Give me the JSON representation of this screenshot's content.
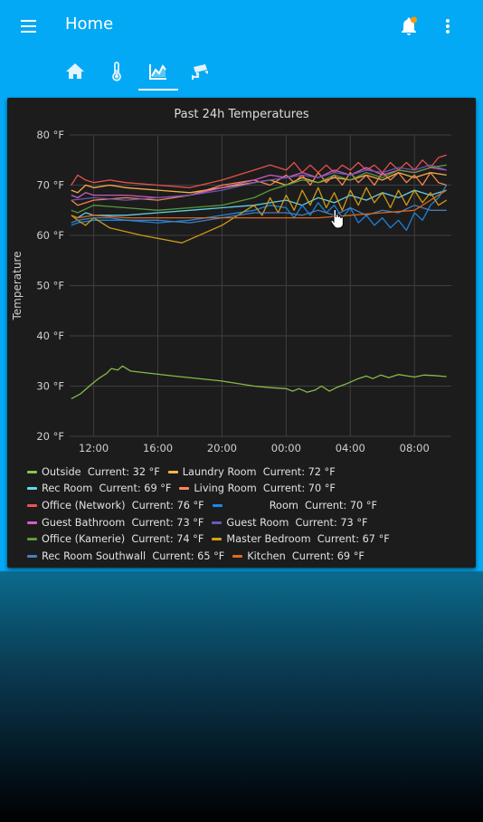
{
  "header": {
    "title": "Home",
    "menu_icon": "menu-icon",
    "notification_icon": "bell-icon",
    "more_icon": "dots-vertical-icon"
  },
  "tabs": [
    {
      "icon": "home-icon",
      "selected": false
    },
    {
      "icon": "thermometer-icon",
      "selected": false
    },
    {
      "icon": "chart-areaspline-icon",
      "selected": true
    },
    {
      "icon": "cctv-icon",
      "selected": false
    }
  ],
  "colors": {
    "accent": "#03a9f4",
    "card": "#1c1c1c",
    "notification_dot": "#ff9800"
  },
  "card": {
    "title": "Past 24h Temperatures"
  },
  "legend": {
    "current_label": "Current:"
  },
  "chart_data": {
    "type": "line",
    "title": "Past 24h Temperatures",
    "ylabel": "Temperature",
    "xlabel": "",
    "ylim": [
      20,
      80
    ],
    "yticks": [
      20,
      30,
      40,
      50,
      60,
      70,
      80
    ],
    "ytick_labels": [
      "20 °F",
      "30 °F",
      "40 °F",
      "50 °F",
      "60 °F",
      "70 °F",
      "80 °F"
    ],
    "xlim": [
      10.5,
      34.3
    ],
    "xticks": [
      12,
      16,
      20,
      24,
      28,
      32
    ],
    "xtick_labels": [
      "12:00",
      "16:00",
      "20:00",
      "00:00",
      "04:00",
      "08:00"
    ],
    "grid": true,
    "legend_position": "bottom",
    "series": [
      {
        "name": "Outside",
        "current": "32 °F",
        "color": "#8bc34a",
        "x": [
          10.6,
          10.8,
          11.2,
          11.8,
          12.3,
          12.8,
          13.1,
          13.5,
          13.8,
          14.3,
          17,
          20,
          22,
          23,
          24,
          24.4,
          24.8,
          25.3,
          25.8,
          26.2,
          26.7,
          27.2,
          27.8,
          28.5,
          29,
          29.4,
          29.9,
          30.4,
          31,
          31.6,
          32,
          32.6,
          33.2,
          34
        ],
        "y": [
          27.5,
          27.8,
          28.5,
          30.2,
          31.5,
          32.5,
          33.5,
          33.2,
          34,
          33,
          32,
          31,
          30,
          29.7,
          29.5,
          29,
          29.5,
          28.8,
          29.2,
          30,
          29,
          29.8,
          30.5,
          31.5,
          32,
          31.5,
          32.2,
          31.7,
          32.3,
          32,
          31.8,
          32.2,
          32.1,
          31.9
        ]
      },
      {
        "name": "Laundry Room",
        "current": "72 °F",
        "color": "#ffb74d",
        "x": [
          10.6,
          11,
          11.5,
          12,
          13,
          14,
          16,
          18,
          20,
          22,
          23,
          24,
          25,
          26,
          27,
          28,
          29,
          30,
          31,
          32,
          33,
          34
        ],
        "y": [
          69,
          68.5,
          70,
          69.5,
          70,
          69.5,
          69,
          68.5,
          69.5,
          70.5,
          71,
          70,
          71.5,
          70.5,
          71.5,
          71,
          72,
          71,
          72.5,
          71.5,
          72.5,
          72
        ]
      },
      {
        "name": "Rec Room",
        "current": "69 °F",
        "color": "#64d8f0",
        "x": [
          10.6,
          11,
          11.5,
          12,
          14,
          16,
          18,
          20,
          22,
          23,
          24,
          25,
          26,
          27,
          28,
          29,
          30,
          31,
          32,
          33,
          34
        ],
        "y": [
          64,
          63.5,
          64.5,
          64,
          64,
          64.5,
          65,
          65.5,
          66,
          66.5,
          67,
          66,
          67.5,
          66.5,
          68,
          67,
          68.5,
          67.5,
          69,
          68,
          69
        ]
      },
      {
        "name": "Living Room",
        "current": "70 °F",
        "color": "#ff8a50",
        "x": [
          10.6,
          11,
          12,
          14,
          16,
          18,
          20,
          22,
          23,
          24,
          24.5,
          25,
          25.5,
          26,
          26.5,
          27,
          27.5,
          28,
          28.5,
          29,
          29.5,
          30,
          30.5,
          31,
          31.5,
          32,
          32.5,
          33,
          33.5,
          34
        ],
        "y": [
          67,
          66,
          67,
          67.5,
          67,
          68,
          70,
          71,
          70,
          72,
          70.5,
          72,
          70,
          72.5,
          70.5,
          72,
          70,
          72.5,
          70.5,
          72,
          70,
          72.5,
          71,
          72.5,
          70.5,
          72,
          70,
          72.5,
          70.5,
          70
        ]
      },
      {
        "name": "Office (Network)",
        "current": "76 °F",
        "color": "#ef5350",
        "x": [
          10.6,
          11,
          11.5,
          12,
          13,
          14,
          16,
          18,
          20,
          22,
          23,
          24,
          24.5,
          25,
          25.5,
          26,
          26.5,
          27,
          27.5,
          28,
          28.5,
          29,
          29.5,
          30,
          30.5,
          31,
          31.5,
          32,
          32.5,
          33,
          33.5,
          34
        ],
        "y": [
          70,
          72,
          71,
          70.5,
          71,
          70.5,
          70,
          69.5,
          71,
          73,
          74,
          73,
          74.5,
          72.5,
          74,
          72.5,
          74,
          72.5,
          74,
          73,
          74.5,
          73,
          74,
          72.5,
          74.5,
          73,
          74.5,
          73,
          75,
          73.5,
          75.5,
          76
        ]
      },
      {
        "name": "Room",
        "current": "70 °F",
        "color": "#1e88e5",
        "x": [
          10.6,
          11,
          12,
          14,
          16,
          18,
          20,
          22,
          23,
          24,
          24.5,
          25,
          25.5,
          26,
          26.5,
          27,
          27.5,
          28,
          28.5,
          29,
          29.5,
          30,
          30.5,
          31,
          31.5,
          32,
          32.5,
          33,
          33.5,
          34
        ],
        "y": [
          62,
          62.5,
          63,
          63,
          62.5,
          63,
          64,
          65,
          66,
          65.5,
          63.5,
          66,
          64,
          66.5,
          64.5,
          66,
          63.5,
          65.5,
          62.5,
          64,
          62,
          63.5,
          61.5,
          63,
          61,
          64.5,
          63,
          66,
          67.5,
          70
        ]
      },
      {
        "name": "Guest Bathroom",
        "current": "73 °F",
        "color": "#d45fc4",
        "x": [
          10.6,
          11,
          11.5,
          12,
          14,
          16,
          18,
          20,
          22,
          23,
          24,
          25,
          26,
          27,
          28,
          29,
          30,
          31,
          32,
          33,
          34
        ],
        "y": [
          68,
          67.5,
          68.5,
          68,
          68,
          67.5,
          68,
          69.5,
          71,
          72,
          71.5,
          72.5,
          71.5,
          73,
          72,
          73.5,
          72,
          73,
          72.5,
          73.5,
          73
        ]
      },
      {
        "name": "Guest Room",
        "current": "73 °F",
        "color": "#6f58b8",
        "x": [
          10.6,
          12,
          14,
          16,
          18,
          20,
          22,
          24,
          25,
          26,
          27,
          28,
          29,
          30,
          31,
          32,
          33,
          34
        ],
        "y": [
          67,
          67.5,
          67,
          67.5,
          68,
          69,
          70.5,
          71.5,
          72,
          71.5,
          72.5,
          72,
          73,
          72.5,
          73.5,
          73,
          74,
          73
        ]
      },
      {
        "name": "Office (Kamerie)",
        "current": "74 °F",
        "color": "#5a9e3c",
        "x": [
          10.6,
          11,
          12,
          14,
          16,
          18,
          20,
          22,
          23,
          24,
          25,
          26,
          27,
          28,
          29,
          30,
          31,
          32,
          33,
          34
        ],
        "y": [
          65,
          64.5,
          66,
          65.5,
          65,
          65.5,
          66,
          67.5,
          69,
          70,
          71,
          70.5,
          72,
          71,
          72.5,
          71.5,
          73,
          72.5,
          73.5,
          74
        ]
      },
      {
        "name": "Master Bedroom",
        "current": "67 °F",
        "color": "#d4a017",
        "x": [
          10.6,
          11,
          11.5,
          12,
          13,
          15,
          17.5,
          20,
          22,
          22.5,
          23,
          23.5,
          24,
          24.5,
          25,
          25.5,
          26,
          26.5,
          27,
          27.5,
          28,
          28.5,
          29,
          29.5,
          30,
          30.5,
          31,
          31.5,
          32,
          32.5,
          33,
          33.5,
          34
        ],
        "y": [
          64,
          63,
          62,
          63.5,
          61.5,
          60,
          58.5,
          62,
          66,
          64,
          67.5,
          64.5,
          68,
          65,
          69,
          66,
          69.5,
          65.5,
          68.5,
          65,
          69,
          66,
          69.5,
          66.5,
          68.5,
          65.5,
          69,
          66,
          69,
          66.5,
          68.5,
          66,
          67
        ]
      },
      {
        "name": "Rec Room Southwall",
        "current": "65 °F",
        "color": "#4a7fc1",
        "x": [
          10.6,
          11,
          12,
          13,
          14,
          16,
          18,
          20,
          22,
          24,
          25,
          26,
          27,
          28,
          29,
          30,
          31,
          32,
          33,
          34
        ],
        "y": [
          62.5,
          63,
          63.5,
          63.5,
          63,
          63,
          62.5,
          63.5,
          64.5,
          64.5,
          64,
          65,
          64,
          65.5,
          64,
          65,
          64.5,
          66,
          65,
          65
        ]
      },
      {
        "name": "Kitchen",
        "current": "69 °F",
        "color": "#e06c1b",
        "x": [
          10.6,
          11,
          12,
          14,
          16,
          18,
          20,
          22,
          24,
          26,
          28,
          30,
          32,
          33.5,
          34
        ],
        "y": [
          64,
          63.5,
          64,
          63.5,
          63.5,
          63.5,
          63.5,
          63.5,
          63.5,
          63.5,
          64,
          64.5,
          65,
          68,
          69
        ]
      }
    ]
  }
}
